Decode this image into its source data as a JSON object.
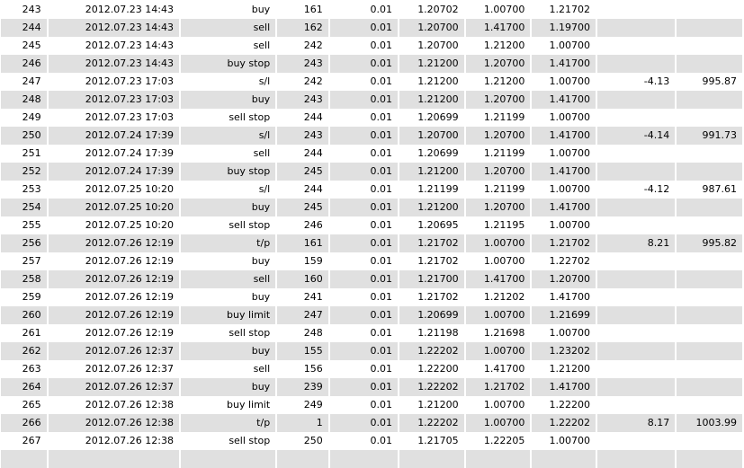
{
  "trade_table": {
    "alt_row_color": "#e0e0e0",
    "rows": [
      [
        "243",
        "2012.07.23 14:43",
        "buy",
        "161",
        "0.01",
        "1.20702",
        "1.00700",
        "1.21702",
        "",
        ""
      ],
      [
        "244",
        "2012.07.23 14:43",
        "sell",
        "162",
        "0.01",
        "1.20700",
        "1.41700",
        "1.19700",
        "",
        ""
      ],
      [
        "245",
        "2012.07.23 14:43",
        "sell",
        "242",
        "0.01",
        "1.20700",
        "1.21200",
        "1.00700",
        "",
        ""
      ],
      [
        "246",
        "2012.07.23 14:43",
        "buy stop",
        "243",
        "0.01",
        "1.21200",
        "1.20700",
        "1.41700",
        "",
        ""
      ],
      [
        "247",
        "2012.07.23 17:03",
        "s/l",
        "242",
        "0.01",
        "1.21200",
        "1.21200",
        "1.00700",
        "-4.13",
        "995.87"
      ],
      [
        "248",
        "2012.07.23 17:03",
        "buy",
        "243",
        "0.01",
        "1.21200",
        "1.20700",
        "1.41700",
        "",
        ""
      ],
      [
        "249",
        "2012.07.23 17:03",
        "sell stop",
        "244",
        "0.01",
        "1.20699",
        "1.21199",
        "1.00700",
        "",
        ""
      ],
      [
        "250",
        "2012.07.24 17:39",
        "s/l",
        "243",
        "0.01",
        "1.20700",
        "1.20700",
        "1.41700",
        "-4.14",
        "991.73"
      ],
      [
        "251",
        "2012.07.24 17:39",
        "sell",
        "244",
        "0.01",
        "1.20699",
        "1.21199",
        "1.00700",
        "",
        ""
      ],
      [
        "252",
        "2012.07.24 17:39",
        "buy stop",
        "245",
        "0.01",
        "1.21200",
        "1.20700",
        "1.41700",
        "",
        ""
      ],
      [
        "253",
        "2012.07.25 10:20",
        "s/l",
        "244",
        "0.01",
        "1.21199",
        "1.21199",
        "1.00700",
        "-4.12",
        "987.61"
      ],
      [
        "254",
        "2012.07.25 10:20",
        "buy",
        "245",
        "0.01",
        "1.21200",
        "1.20700",
        "1.41700",
        "",
        ""
      ],
      [
        "255",
        "2012.07.25 10:20",
        "sell stop",
        "246",
        "0.01",
        "1.20695",
        "1.21195",
        "1.00700",
        "",
        ""
      ],
      [
        "256",
        "2012.07.26 12:19",
        "t/p",
        "161",
        "0.01",
        "1.21702",
        "1.00700",
        "1.21702",
        "8.21",
        "995.82"
      ],
      [
        "257",
        "2012.07.26 12:19",
        "buy",
        "159",
        "0.01",
        "1.21702",
        "1.00700",
        "1.22702",
        "",
        ""
      ],
      [
        "258",
        "2012.07.26 12:19",
        "sell",
        "160",
        "0.01",
        "1.21700",
        "1.41700",
        "1.20700",
        "",
        ""
      ],
      [
        "259",
        "2012.07.26 12:19",
        "buy",
        "241",
        "0.01",
        "1.21702",
        "1.21202",
        "1.41700",
        "",
        ""
      ],
      [
        "260",
        "2012.07.26 12:19",
        "buy limit",
        "247",
        "0.01",
        "1.20699",
        "1.00700",
        "1.21699",
        "",
        ""
      ],
      [
        "261",
        "2012.07.26 12:19",
        "sell stop",
        "248",
        "0.01",
        "1.21198",
        "1.21698",
        "1.00700",
        "",
        ""
      ],
      [
        "262",
        "2012.07.26 12:37",
        "buy",
        "155",
        "0.01",
        "1.22202",
        "1.00700",
        "1.23202",
        "",
        ""
      ],
      [
        "263",
        "2012.07.26 12:37",
        "sell",
        "156",
        "0.01",
        "1.22200",
        "1.41700",
        "1.21200",
        "",
        ""
      ],
      [
        "264",
        "2012.07.26 12:37",
        "buy",
        "239",
        "0.01",
        "1.22202",
        "1.21702",
        "1.41700",
        "",
        ""
      ],
      [
        "265",
        "2012.07.26 12:38",
        "buy limit",
        "249",
        "0.01",
        "1.21200",
        "1.00700",
        "1.22200",
        "",
        ""
      ],
      [
        "266",
        "2012.07.26 12:38",
        "t/p",
        "1",
        "0.01",
        "1.22202",
        "1.00700",
        "1.22202",
        "8.17",
        "1003.99"
      ],
      [
        "267",
        "2012.07.26 12:38",
        "sell stop",
        "250",
        "0.01",
        "1.21705",
        "1.22205",
        "1.00700",
        "",
        ""
      ],
      [
        "",
        "",
        "",
        "",
        "",
        "",
        "",
        "",
        "",
        ""
      ]
    ]
  }
}
